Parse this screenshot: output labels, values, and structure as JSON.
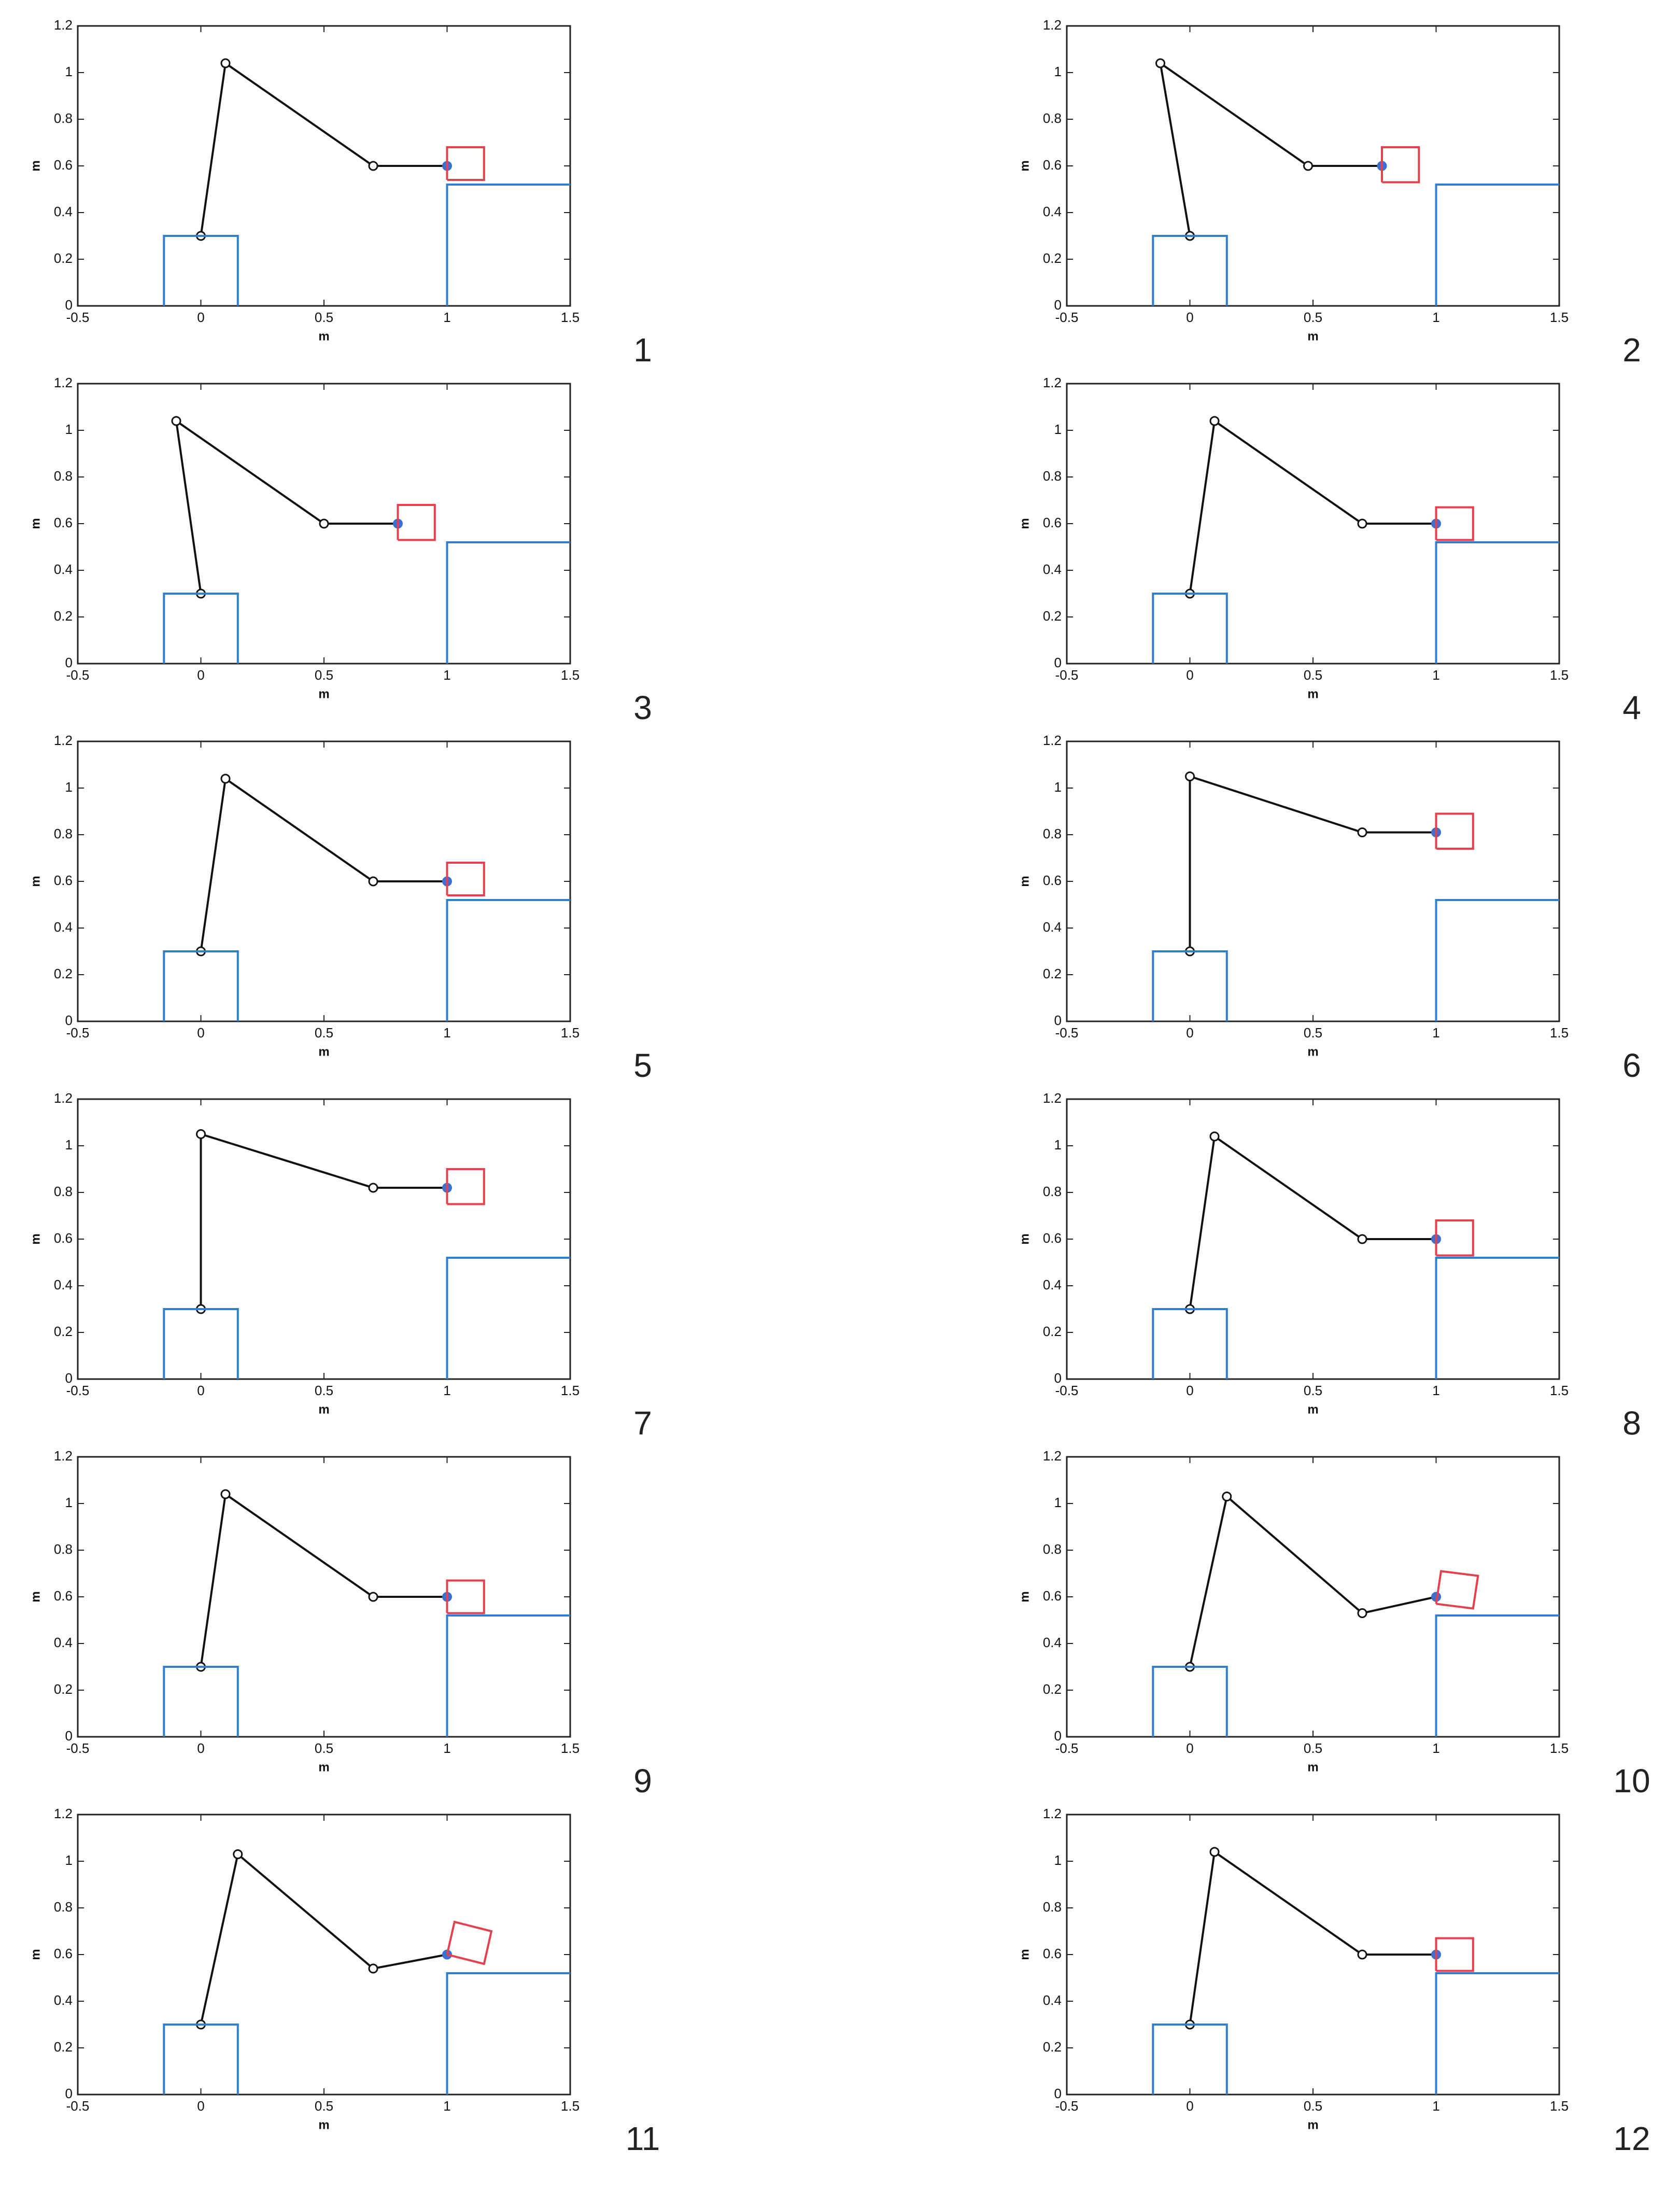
{
  "chart_data": [
    {
      "type": "line",
      "panel_label": "1",
      "xlabel": "m",
      "ylabel": "m",
      "xlim": [
        -0.5,
        1.5
      ],
      "ylim": [
        0,
        1.2
      ],
      "xticks": [
        -0.5,
        0,
        0.5,
        1,
        1.5
      ],
      "yticks": [
        0,
        0.2,
        0.4,
        0.6,
        0.8,
        1,
        1.2
      ],
      "series": [
        {
          "color": "#111111",
          "markers": true,
          "end_color": "#3b6fd0",
          "x": [
            0,
            0.1,
            0.7,
            1
          ],
          "values": [
            0.3,
            1.04,
            0.6,
            0.6
          ]
        },
        {
          "color": "#2f7fd0",
          "x": [
            -0.15,
            -0.15,
            0.15,
            0.15
          ],
          "values": [
            0,
            0.3,
            0.3,
            0
          ]
        },
        {
          "color": "#2f7fd0",
          "x": [
            1,
            1,
            1.5
          ],
          "values": [
            0,
            0.52,
            0.52
          ]
        },
        {
          "color": "#e5404e",
          "x": [
            1,
            1.15,
            1.15,
            1,
            1
          ],
          "values": [
            0.54,
            0.54,
            0.68,
            0.68,
            0.54
          ]
        }
      ]
    },
    {
      "type": "line",
      "panel_label": "2",
      "xlabel": "m",
      "ylabel": "m",
      "xlim": [
        -0.5,
        1.5
      ],
      "ylim": [
        0,
        1.2
      ],
      "xticks": [
        -0.5,
        0,
        0.5,
        1,
        1.5
      ],
      "yticks": [
        0,
        0.2,
        0.4,
        0.6,
        0.8,
        1,
        1.2
      ],
      "series": [
        {
          "color": "#111111",
          "markers": true,
          "end_color": "#3b6fd0",
          "x": [
            0,
            -0.12,
            0.48,
            0.78
          ],
          "values": [
            0.3,
            1.04,
            0.6,
            0.6
          ]
        },
        {
          "color": "#2f7fd0",
          "x": [
            -0.15,
            -0.15,
            0.15,
            0.15
          ],
          "values": [
            0,
            0.3,
            0.3,
            0
          ]
        },
        {
          "color": "#2f7fd0",
          "x": [
            1,
            1,
            1.5
          ],
          "values": [
            0,
            0.52,
            0.52
          ]
        },
        {
          "color": "#e5404e",
          "x": [
            0.78,
            0.93,
            0.93,
            0.78,
            0.78
          ],
          "values": [
            0.53,
            0.53,
            0.68,
            0.68,
            0.53
          ]
        }
      ]
    },
    {
      "type": "line",
      "panel_label": "3",
      "xlabel": "m",
      "ylabel": "m",
      "xlim": [
        -0.5,
        1.5
      ],
      "ylim": [
        0,
        1.2
      ],
      "xticks": [
        -0.5,
        0,
        0.5,
        1,
        1.5
      ],
      "yticks": [
        0,
        0.2,
        0.4,
        0.6,
        0.8,
        1,
        1.2
      ],
      "series": [
        {
          "color": "#111111",
          "markers": true,
          "end_color": "#3b6fd0",
          "x": [
            0,
            -0.1,
            0.5,
            0.8
          ],
          "values": [
            0.3,
            1.04,
            0.6,
            0.6
          ]
        },
        {
          "color": "#2f7fd0",
          "x": [
            -0.15,
            -0.15,
            0.15,
            0.15
          ],
          "values": [
            0,
            0.3,
            0.3,
            0
          ]
        },
        {
          "color": "#2f7fd0",
          "x": [
            1,
            1,
            1.5
          ],
          "values": [
            0,
            0.52,
            0.52
          ]
        },
        {
          "color": "#e5404e",
          "x": [
            0.8,
            0.95,
            0.95,
            0.8,
            0.8
          ],
          "values": [
            0.53,
            0.53,
            0.68,
            0.68,
            0.53
          ]
        }
      ]
    },
    {
      "type": "line",
      "panel_label": "4",
      "xlabel": "m",
      "ylabel": "m",
      "xlim": [
        -0.5,
        1.5
      ],
      "ylim": [
        0,
        1.2
      ],
      "xticks": [
        -0.5,
        0,
        0.5,
        1,
        1.5
      ],
      "yticks": [
        0,
        0.2,
        0.4,
        0.6,
        0.8,
        1,
        1.2
      ],
      "series": [
        {
          "color": "#111111",
          "markers": true,
          "end_color": "#3b6fd0",
          "x": [
            0,
            0.1,
            0.7,
            1
          ],
          "values": [
            0.3,
            1.04,
            0.6,
            0.6
          ]
        },
        {
          "color": "#2f7fd0",
          "x": [
            -0.15,
            -0.15,
            0.15,
            0.15
          ],
          "values": [
            0,
            0.3,
            0.3,
            0
          ]
        },
        {
          "color": "#2f7fd0",
          "x": [
            1,
            1,
            1.5
          ],
          "values": [
            0,
            0.52,
            0.52
          ]
        },
        {
          "color": "#e5404e",
          "x": [
            1,
            1.15,
            1.15,
            1,
            1
          ],
          "values": [
            0.53,
            0.53,
            0.67,
            0.67,
            0.53
          ]
        }
      ]
    },
    {
      "type": "line",
      "panel_label": "5",
      "xlabel": "m",
      "ylabel": "m",
      "xlim": [
        -0.5,
        1.5
      ],
      "ylim": [
        0,
        1.2
      ],
      "xticks": [
        -0.5,
        0,
        0.5,
        1,
        1.5
      ],
      "yticks": [
        0,
        0.2,
        0.4,
        0.6,
        0.8,
        1,
        1.2
      ],
      "series": [
        {
          "color": "#111111",
          "markers": true,
          "end_color": "#3b6fd0",
          "x": [
            0,
            0.1,
            0.7,
            1
          ],
          "values": [
            0.3,
            1.04,
            0.6,
            0.6
          ]
        },
        {
          "color": "#2f7fd0",
          "x": [
            -0.15,
            -0.15,
            0.15,
            0.15
          ],
          "values": [
            0,
            0.3,
            0.3,
            0
          ]
        },
        {
          "color": "#2f7fd0",
          "x": [
            1,
            1,
            1.5
          ],
          "values": [
            0,
            0.52,
            0.52
          ]
        },
        {
          "color": "#e5404e",
          "x": [
            1,
            1.15,
            1.15,
            1,
            1
          ],
          "values": [
            0.54,
            0.54,
            0.68,
            0.68,
            0.54
          ]
        }
      ]
    },
    {
      "type": "line",
      "panel_label": "6",
      "xlabel": "m",
      "ylabel": "m",
      "xlim": [
        -0.5,
        1.5
      ],
      "ylim": [
        0,
        1.2
      ],
      "xticks": [
        -0.5,
        0,
        0.5,
        1,
        1.5
      ],
      "yticks": [
        0,
        0.2,
        0.4,
        0.6,
        0.8,
        1,
        1.2
      ],
      "series": [
        {
          "color": "#111111",
          "markers": true,
          "end_color": "#3b6fd0",
          "x": [
            0,
            0,
            0.7,
            1
          ],
          "values": [
            0.3,
            1.05,
            0.81,
            0.81
          ]
        },
        {
          "color": "#2f7fd0",
          "x": [
            -0.15,
            -0.15,
            0.15,
            0.15
          ],
          "values": [
            0,
            0.3,
            0.3,
            0
          ]
        },
        {
          "color": "#2f7fd0",
          "x": [
            1,
            1,
            1.5
          ],
          "values": [
            0,
            0.52,
            0.52
          ]
        },
        {
          "color": "#e5404e",
          "x": [
            1,
            1.15,
            1.15,
            1,
            1
          ],
          "values": [
            0.74,
            0.74,
            0.89,
            0.89,
            0.74
          ]
        }
      ]
    },
    {
      "type": "line",
      "panel_label": "7",
      "xlabel": "m",
      "ylabel": "m",
      "xlim": [
        -0.5,
        1.5
      ],
      "ylim": [
        0,
        1.2
      ],
      "xticks": [
        -0.5,
        0,
        0.5,
        1,
        1.5
      ],
      "yticks": [
        0,
        0.2,
        0.4,
        0.6,
        0.8,
        1,
        1.2
      ],
      "series": [
        {
          "color": "#111111",
          "markers": true,
          "end_color": "#3b6fd0",
          "x": [
            0,
            0,
            0.7,
            1
          ],
          "values": [
            0.3,
            1.05,
            0.82,
            0.82
          ]
        },
        {
          "color": "#2f7fd0",
          "x": [
            -0.15,
            -0.15,
            0.15,
            0.15
          ],
          "values": [
            0,
            0.3,
            0.3,
            0
          ]
        },
        {
          "color": "#2f7fd0",
          "x": [
            1,
            1,
            1.5
          ],
          "values": [
            0,
            0.52,
            0.52
          ]
        },
        {
          "color": "#e5404e",
          "x": [
            1,
            1.15,
            1.15,
            1,
            1
          ],
          "values": [
            0.75,
            0.75,
            0.9,
            0.9,
            0.75
          ]
        }
      ]
    },
    {
      "type": "line",
      "panel_label": "8",
      "xlabel": "m",
      "ylabel": "m",
      "xlim": [
        -0.5,
        1.5
      ],
      "ylim": [
        0,
        1.2
      ],
      "xticks": [
        -0.5,
        0,
        0.5,
        1,
        1.5
      ],
      "yticks": [
        0,
        0.2,
        0.4,
        0.6,
        0.8,
        1,
        1.2
      ],
      "series": [
        {
          "color": "#111111",
          "markers": true,
          "end_color": "#3b6fd0",
          "x": [
            0,
            0.1,
            0.7,
            1
          ],
          "values": [
            0.3,
            1.04,
            0.6,
            0.6
          ]
        },
        {
          "color": "#2f7fd0",
          "x": [
            -0.15,
            -0.15,
            0.15,
            0.15
          ],
          "values": [
            0,
            0.3,
            0.3,
            0
          ]
        },
        {
          "color": "#2f7fd0",
          "x": [
            1,
            1,
            1.5
          ],
          "values": [
            0,
            0.52,
            0.52
          ]
        },
        {
          "color": "#e5404e",
          "x": [
            1,
            1.15,
            1.15,
            1,
            1
          ],
          "values": [
            0.53,
            0.53,
            0.68,
            0.68,
            0.53
          ]
        }
      ]
    },
    {
      "type": "line",
      "panel_label": "9",
      "xlabel": "m",
      "ylabel": "m",
      "xlim": [
        -0.5,
        1.5
      ],
      "ylim": [
        0,
        1.2
      ],
      "xticks": [
        -0.5,
        0,
        0.5,
        1,
        1.5
      ],
      "yticks": [
        0,
        0.2,
        0.4,
        0.6,
        0.8,
        1,
        1.2
      ],
      "series": [
        {
          "color": "#111111",
          "markers": true,
          "end_color": "#3b6fd0",
          "x": [
            0,
            0.1,
            0.7,
            1
          ],
          "values": [
            0.3,
            1.04,
            0.6,
            0.6
          ]
        },
        {
          "color": "#2f7fd0",
          "x": [
            -0.15,
            -0.15,
            0.15,
            0.15
          ],
          "values": [
            0,
            0.3,
            0.3,
            0
          ]
        },
        {
          "color": "#2f7fd0",
          "x": [
            1,
            1,
            1.5
          ],
          "values": [
            0,
            0.52,
            0.52
          ]
        },
        {
          "color": "#e5404e",
          "x": [
            1,
            1.15,
            1.15,
            1,
            1
          ],
          "values": [
            0.53,
            0.53,
            0.67,
            0.67,
            0.53
          ]
        }
      ]
    },
    {
      "type": "line",
      "panel_label": "10",
      "xlabel": "m",
      "ylabel": "m",
      "xlim": [
        -0.5,
        1.5
      ],
      "ylim": [
        0,
        1.2
      ],
      "xticks": [
        -0.5,
        0,
        0.5,
        1,
        1.5
      ],
      "yticks": [
        0,
        0.2,
        0.4,
        0.6,
        0.8,
        1,
        1.2
      ],
      "series": [
        {
          "color": "#111111",
          "markers": true,
          "end_color": "#3b6fd0",
          "x": [
            0,
            0.15,
            0.7,
            1
          ],
          "values": [
            0.3,
            1.03,
            0.53,
            0.6
          ]
        },
        {
          "color": "#2f7fd0",
          "x": [
            -0.15,
            -0.15,
            0.15,
            0.15
          ],
          "values": [
            0,
            0.3,
            0.3,
            0
          ]
        },
        {
          "color": "#2f7fd0",
          "x": [
            1,
            1,
            1.5
          ],
          "values": [
            0,
            0.52,
            0.52
          ]
        },
        {
          "color": "#e5404e",
          "x": [
            1,
            1.15,
            1.17,
            1.02,
            1
          ],
          "values": [
            0.57,
            0.55,
            0.69,
            0.71,
            0.57
          ]
        }
      ]
    },
    {
      "type": "line",
      "panel_label": "11",
      "xlabel": "m",
      "ylabel": "m",
      "xlim": [
        -0.5,
        1.5
      ],
      "ylim": [
        0,
        1.2
      ],
      "xticks": [
        -0.5,
        0,
        0.5,
        1,
        1.5
      ],
      "yticks": [
        0,
        0.2,
        0.4,
        0.6,
        0.8,
        1,
        1.2
      ],
      "series": [
        {
          "color": "#111111",
          "markers": true,
          "end_color": "#3b6fd0",
          "x": [
            0,
            0.15,
            0.7,
            1
          ],
          "values": [
            0.3,
            1.03,
            0.54,
            0.6
          ]
        },
        {
          "color": "#2f7fd0",
          "x": [
            -0.15,
            -0.15,
            0.15,
            0.15
          ],
          "values": [
            0,
            0.3,
            0.3,
            0
          ]
        },
        {
          "color": "#2f7fd0",
          "x": [
            1,
            1,
            1.5
          ],
          "values": [
            0,
            0.52,
            0.52
          ]
        },
        {
          "color": "#e5404e",
          "x": [
            1,
            1.15,
            1.18,
            1.03,
            1
          ],
          "values": [
            0.6,
            0.56,
            0.7,
            0.74,
            0.6
          ]
        }
      ]
    },
    {
      "type": "line",
      "panel_label": "12",
      "xlabel": "m",
      "ylabel": "m",
      "xlim": [
        -0.5,
        1.5
      ],
      "ylim": [
        0,
        1.2
      ],
      "xticks": [
        -0.5,
        0,
        0.5,
        1,
        1.5
      ],
      "yticks": [
        0,
        0.2,
        0.4,
        0.6,
        0.8,
        1,
        1.2
      ],
      "series": [
        {
          "color": "#111111",
          "markers": true,
          "end_color": "#3b6fd0",
          "x": [
            0,
            0.1,
            0.7,
            1
          ],
          "values": [
            0.3,
            1.04,
            0.6,
            0.6
          ]
        },
        {
          "color": "#2f7fd0",
          "x": [
            -0.15,
            -0.15,
            0.15,
            0.15
          ],
          "values": [
            0,
            0.3,
            0.3,
            0
          ]
        },
        {
          "color": "#2f7fd0",
          "x": [
            1,
            1,
            1.5
          ],
          "values": [
            0,
            0.52,
            0.52
          ]
        },
        {
          "color": "#e5404e",
          "x": [
            1,
            1.15,
            1.15,
            1,
            1
          ],
          "values": [
            0.53,
            0.53,
            0.67,
            0.67,
            0.53
          ]
        }
      ]
    }
  ]
}
